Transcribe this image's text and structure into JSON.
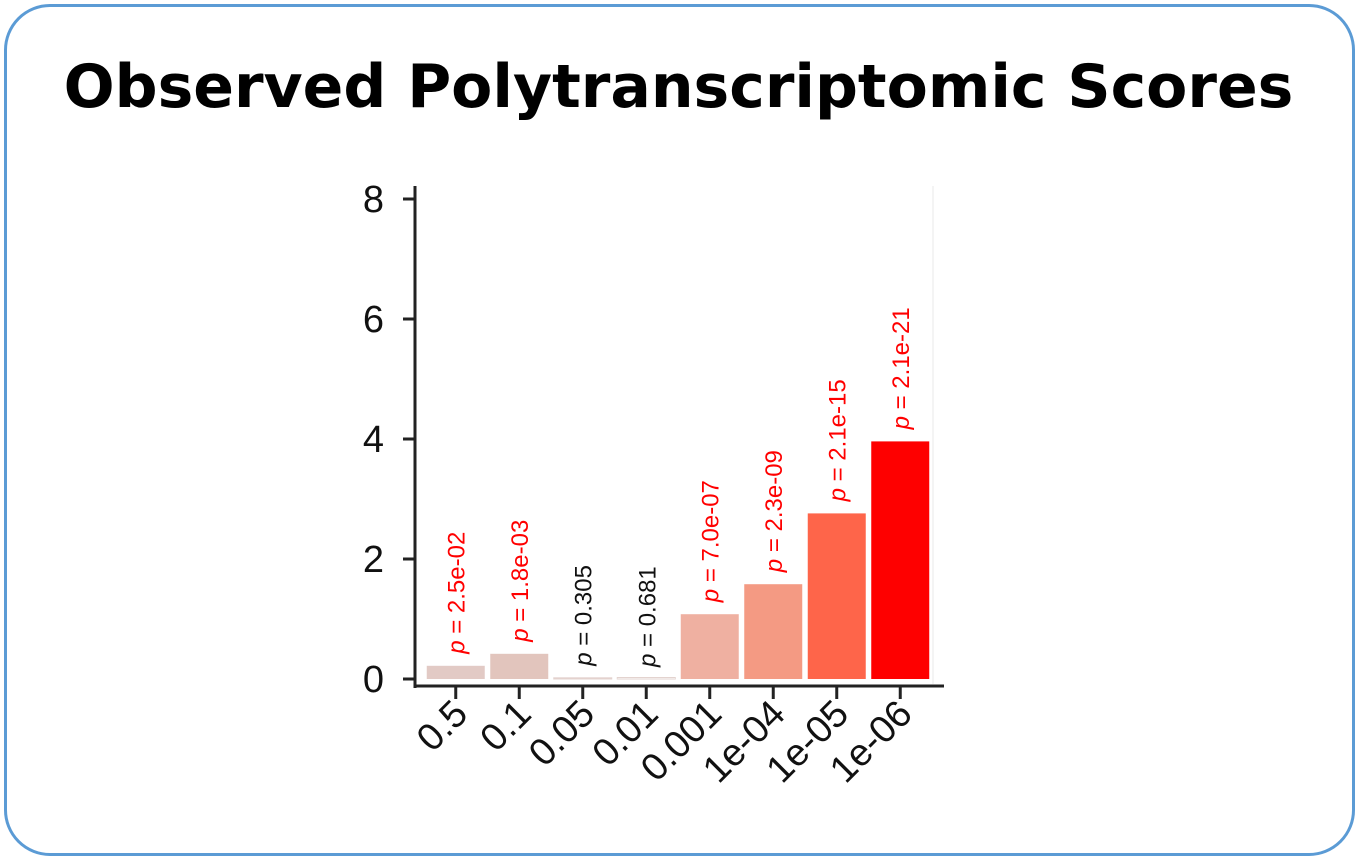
{
  "title": "Observed Polytranscriptomic Scores",
  "chart_data": {
    "type": "bar",
    "categories": [
      "0.5",
      "0.1",
      "0.05",
      "0.01",
      "0.001",
      "1e-04",
      "1e-05",
      "1e-06"
    ],
    "values": [
      0.22,
      0.42,
      0.02,
      0.0,
      1.08,
      1.58,
      2.76,
      3.96
    ],
    "bar_colors": [
      "#e2cac5",
      "#e2c5bd",
      "#e6d2ce",
      "#ffffff",
      "#efb0a1",
      "#f49a83",
      "#fe654a",
      "#fe0000"
    ],
    "p_labels": [
      "p = 2.5e-02",
      "p = 1.8e-03",
      "p = 0.305",
      "p = 0.681",
      "p = 7.0e-07",
      "p = 2.3e-09",
      "p = 2.1e-15",
      "p = 2.1e-21"
    ],
    "p_label_colors": [
      "#ff0000",
      "#ff0000",
      "#111111",
      "#111111",
      "#ff0000",
      "#ff0000",
      "#ff0000",
      "#ff0000"
    ],
    "yticks": [
      0,
      2,
      4,
      6,
      8
    ],
    "ylim": [
      0,
      8
    ],
    "xlabel": "",
    "ylabel": "",
    "grid": false
  }
}
